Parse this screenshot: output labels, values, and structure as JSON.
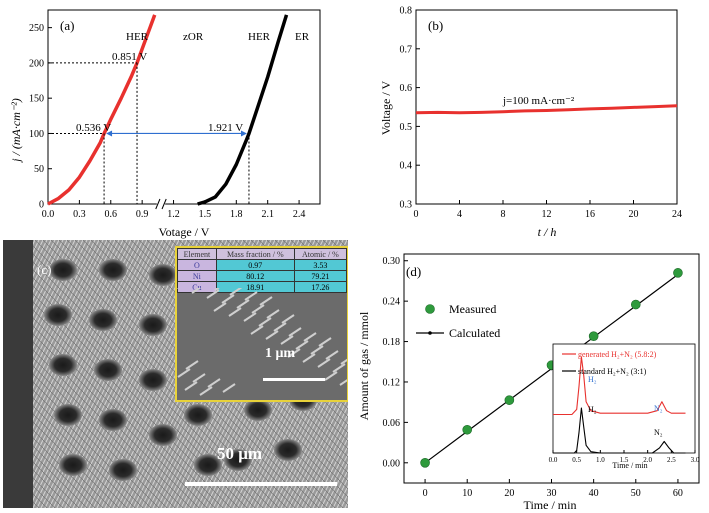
{
  "colors": {
    "red": "#e8312e",
    "black": "#000000",
    "blue": "#2f6fd0",
    "inset_border": "#e8d23a",
    "green": "#2e9a3c"
  },
  "panel_a": {
    "label": "(a)",
    "ylabel": "j / (mA·cm⁻²)",
    "xlabel": "Votage / V",
    "text_labels": [
      "HER",
      "zOR",
      "HER",
      "ER"
    ],
    "annotations": [
      "0.851 V",
      "0.536 V",
      "1.921 V"
    ]
  },
  "panel_b": {
    "label": "(b)",
    "ylabel": "Voltage / V",
    "xlabel": "t / h",
    "annotation": "j=100 mA·cm⁻²"
  },
  "panel_c": {
    "label": "(c)",
    "scale_main": "50 μm",
    "scale_inset": "1 μm",
    "table_header": [
      "Element",
      "Mass fraction / %",
      "Atomic / %"
    ],
    "table_rows": [
      [
        "O",
        "0.97",
        "3.53"
      ],
      [
        "Ni",
        "80.12",
        "79.21"
      ],
      [
        "Cu",
        "18.91",
        "17.26"
      ]
    ]
  },
  "panel_d": {
    "label": "(d)",
    "ylabel": "Amount of gas / mmol",
    "xlabel": "Time / min",
    "legend": [
      "Measured",
      "Calculated"
    ],
    "inset_legend": [
      "generated H₂+N₂ (5.8:2)",
      "standard H₂+N₂ (3:1)"
    ],
    "inset_xlabel": "Time / min",
    "inset_peak_labels": [
      "H₂",
      "N₂",
      "H₂",
      "N₂"
    ]
  },
  "chart_data": [
    {
      "type": "line",
      "title": "(a)",
      "xlabel": "Votage / V",
      "ylabel": "j / (mA·cm⁻²)",
      "xlim": [
        0,
        2.6
      ],
      "ylim": [
        0,
        275
      ],
      "xticks": [
        "0.0",
        "0.3",
        "0.6",
        "0.9",
        "1.2",
        "1.5",
        "1.8",
        "2.1",
        "2.4"
      ],
      "yticks": [
        "0",
        "50",
        "100",
        "150",
        "200",
        "250"
      ],
      "series": [
        {
          "name": "HER ‖ zOR",
          "color": "#e8312e",
          "x": [
            0.0,
            0.1,
            0.2,
            0.3,
            0.4,
            0.5,
            0.536,
            0.6,
            0.7,
            0.8,
            0.851,
            0.9,
            0.95,
            1.0,
            1.02
          ],
          "y": [
            0,
            8,
            20,
            38,
            61,
            87,
            100,
            120,
            150,
            182,
            200,
            220,
            240,
            260,
            268
          ]
        },
        {
          "name": "HER ‖ ER",
          "color": "#000000",
          "x": [
            1.43,
            1.5,
            1.6,
            1.7,
            1.8,
            1.9,
            1.921,
            2.0,
            2.1,
            2.2,
            2.28
          ],
          "y": [
            0,
            3,
            10,
            28,
            56,
            92,
            100,
            135,
            180,
            230,
            268
          ]
        }
      ],
      "reference_points": [
        {
          "label": "0.851 V",
          "x": 0.851,
          "y": 200
        },
        {
          "label": "0.536 V",
          "x": 0.536,
          "y": 100
        },
        {
          "label": "1.921 V",
          "x": 1.921,
          "y": 100
        }
      ]
    },
    {
      "type": "line",
      "title": "(b)",
      "xlabel": "t / h",
      "ylabel": "Voltage / V",
      "xlim": [
        0,
        24
      ],
      "ylim": [
        0.3,
        0.8
      ],
      "xticks": [
        "0",
        "4",
        "8",
        "12",
        "16",
        "20",
        "24"
      ],
      "yticks": [
        "0.3",
        "0.4",
        "0.5",
        "0.6",
        "0.7",
        "0.8"
      ],
      "series": [
        {
          "color": "#e8312e",
          "x": [
            0,
            2,
            4,
            6,
            8,
            10,
            12,
            14,
            16,
            18,
            20,
            22,
            24
          ],
          "y": [
            0.535,
            0.536,
            0.535,
            0.536,
            0.538,
            0.54,
            0.541,
            0.543,
            0.545,
            0.547,
            0.549,
            0.551,
            0.553
          ]
        }
      ]
    },
    {
      "type": "scatter",
      "title": "(d)",
      "xlabel": "Time / min",
      "ylabel": "Amount of gas / mmol",
      "xlim": [
        -5,
        65
      ],
      "ylim": [
        -0.03,
        0.31
      ],
      "xticks": [
        "0",
        "10",
        "20",
        "30",
        "40",
        "50",
        "60"
      ],
      "yticks": [
        "0.00",
        "0.06",
        "0.12",
        "0.18",
        "0.24",
        "0.30"
      ],
      "series": [
        {
          "name": "Measured",
          "color": "#2e9a3c",
          "x": [
            0,
            10,
            20,
            30,
            40,
            50,
            60
          ],
          "y": [
            0.0,
            0.049,
            0.093,
            0.145,
            0.188,
            0.235,
            0.282
          ]
        },
        {
          "name": "Calculated",
          "color": "#000000",
          "x": [
            0,
            10,
            20,
            30,
            40,
            50,
            60
          ],
          "y": [
            0.0,
            0.0466,
            0.0932,
            0.1398,
            0.1864,
            0.233,
            0.2796
          ]
        }
      ]
    },
    {
      "type": "line",
      "title": "inset",
      "xlabel": "Time / min",
      "xlim": [
        0,
        3.0
      ],
      "xticks": [
        "0.0",
        "0.5",
        "1.0",
        "1.5",
        "2.0",
        "2.5",
        "3.0"
      ],
      "series": [
        {
          "name": "generated H₂+N₂ (5.8:2)",
          "color": "#e8312e",
          "x": [
            0.0,
            0.4,
            0.5,
            0.55,
            0.6,
            0.65,
            0.7,
            0.8,
            1.0,
            2.0,
            2.2,
            2.3,
            2.4,
            2.5,
            2.8
          ],
          "y": [
            0.3,
            0.3,
            0.34,
            0.52,
            0.75,
            0.6,
            0.4,
            0.33,
            0.31,
            0.31,
            0.33,
            0.4,
            0.33,
            0.31,
            0.31
          ]
        },
        {
          "name": "standard H₂+N₂ (3:1)",
          "color": "#000000",
          "x": [
            0.0,
            0.45,
            0.5,
            0.55,
            0.6,
            0.65,
            0.7,
            0.8,
            1.0,
            2.1,
            2.25,
            2.35,
            2.45,
            2.55,
            2.8
          ],
          "y": [
            0.0,
            0.0,
            0.02,
            0.16,
            0.35,
            0.2,
            0.06,
            0.01,
            0.0,
            0.0,
            0.04,
            0.09,
            0.04,
            0.0,
            0.0
          ]
        }
      ]
    }
  ]
}
